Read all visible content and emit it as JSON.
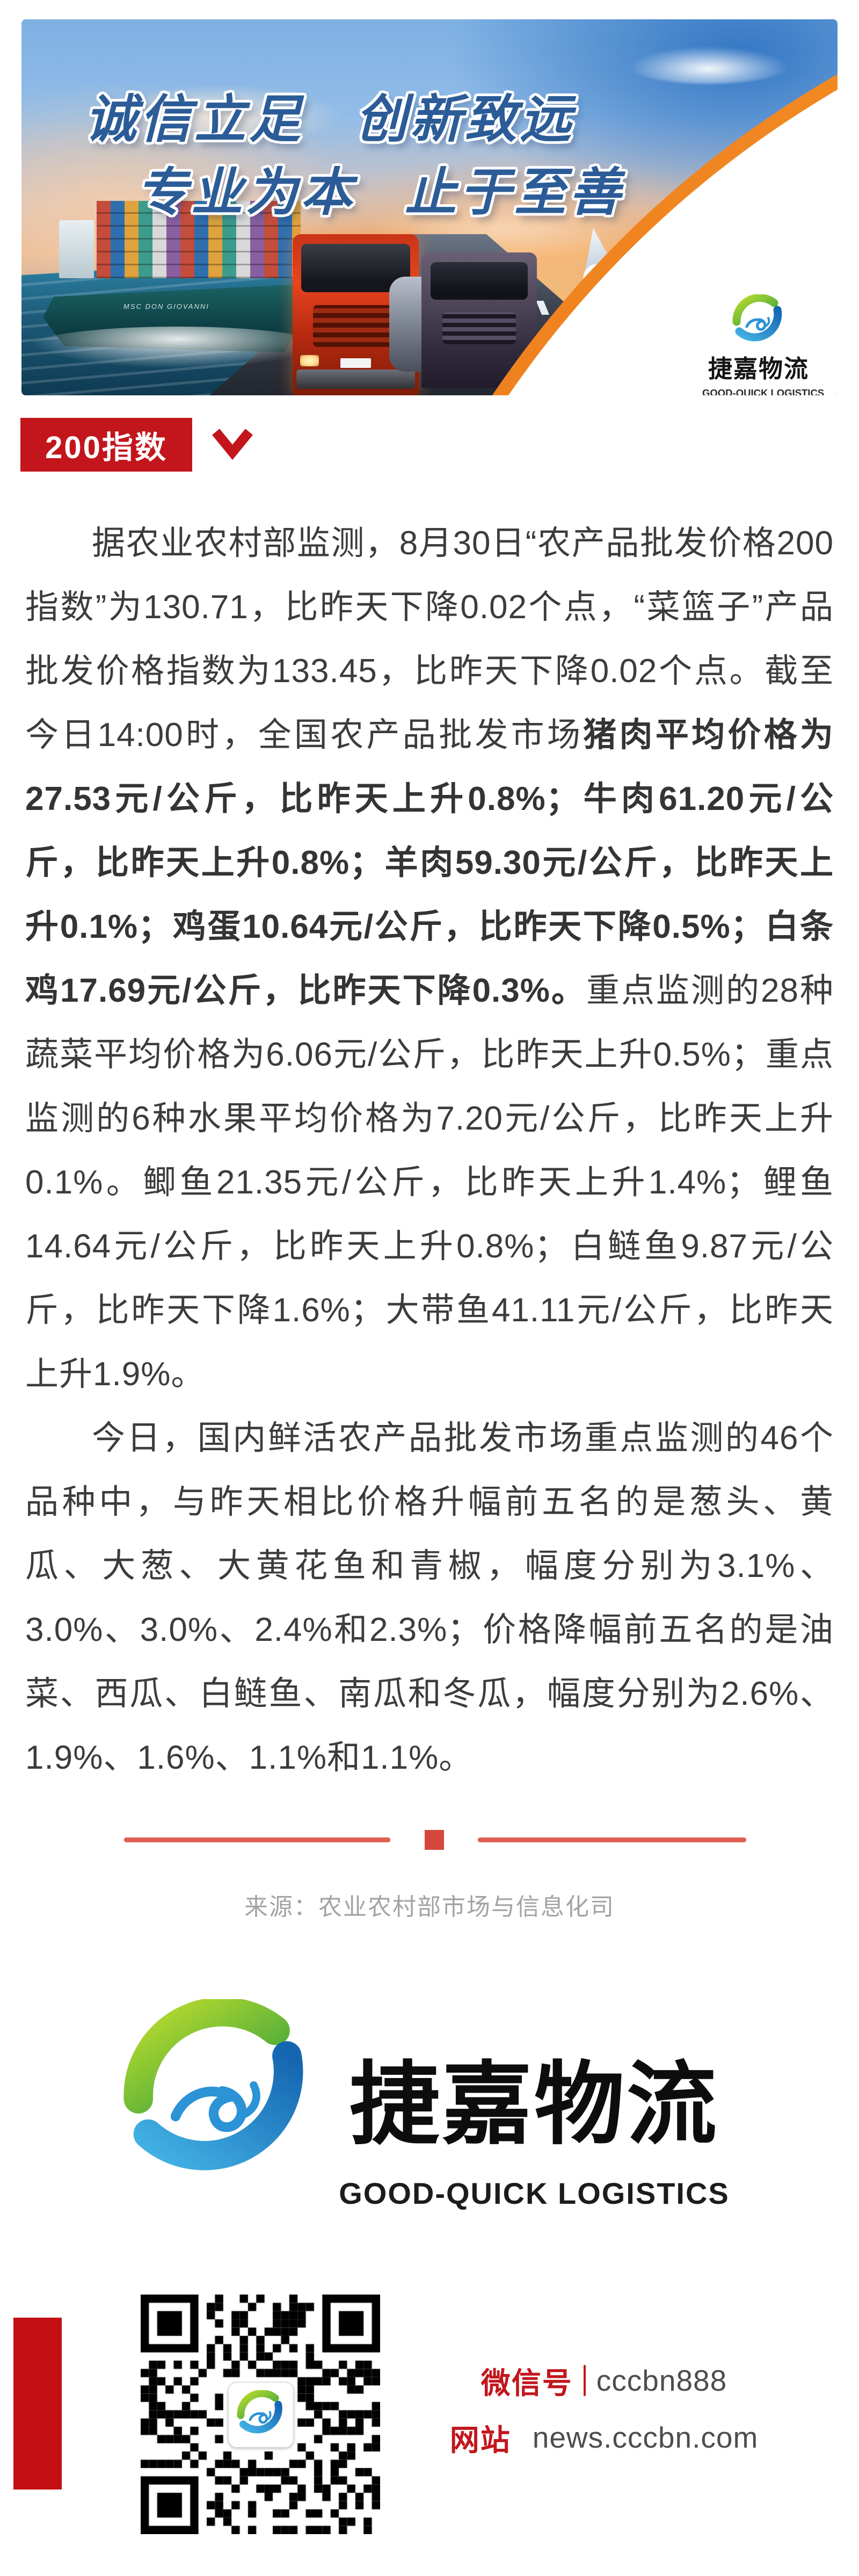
{
  "banner": {
    "slogan_line1_left": "诚信立足",
    "slogan_line1_right": "创新致远",
    "slogan_line2_left": "专业为本",
    "slogan_line2_right": "止于至善",
    "ship_name": "MSC DON GIOVANNI",
    "corner_logo_title": "捷嘉物流",
    "corner_logo_subtitle": "GOOD-QUICK LOGISTICS"
  },
  "tag": {
    "label": "200指数"
  },
  "article": {
    "p1_pre": "据农业农村部监测，8月30日“农产品批发价格200指数”为130.71，比昨天下降0.02个点，“菜篮子”产品批发价格指数为133.45，比昨天下降0.02个点。截至今日14:00时，全国农产品批发市场",
    "p1_bold": "猪肉平均价格为27.53元/公斤，比昨天上升0.8%；牛肉61.20元/公斤，比昨天上升0.8%；羊肉59.30元/公斤，比昨天上升0.1%；鸡蛋10.64元/公斤，比昨天下降0.5%；白条鸡17.69元/公斤，比昨天下降0.3%。",
    "p1_post": "重点监测的28种蔬菜平均价格为6.06元/公斤，比昨天上升0.5%；重点监测的6种水果平均价格为7.20元/公斤，比昨天上升0.1%。鲫鱼21.35元/公斤，比昨天上升1.4%；鲤鱼14.64元/公斤，比昨天上升0.8%；白鲢鱼9.87元/公斤，比昨天下降1.6%；大带鱼41.11元/公斤，比昨天上升1.9%。",
    "p2": "今日，国内鲜活农产品批发市场重点监测的46个品种中，与昨天相比价格升幅前五名的是葱头、黄瓜、大葱、大黄花鱼和青椒，幅度分别为3.1%、3.0%、3.0%、2.4%和2.3%；价格降幅前五名的是油菜、西瓜、白鲢鱼、南瓜和冬瓜，幅度分别为2.6%、1.9%、1.6%、1.1%和1.1%。"
  },
  "source": {
    "label": "来源：农业农村部市场与信息化司"
  },
  "brand": {
    "title": "捷嘉物流",
    "subtitle": "GOOD-QUICK LOGISTICS"
  },
  "contact": {
    "wechat_label": "微信号",
    "wechat_value": "cccbn888",
    "site_label": "网站",
    "site_value": "news.cccbn.com"
  },
  "colors": {
    "accent_red": "#c2161c",
    "divider_line": "#df6052",
    "divider_block": "#d5473c",
    "swoosh_orange": "#ef7d1c",
    "body_text": "#3c3c3c",
    "source_gray": "#a3a3a3",
    "contact_value_gray": "#4d4d4d"
  }
}
